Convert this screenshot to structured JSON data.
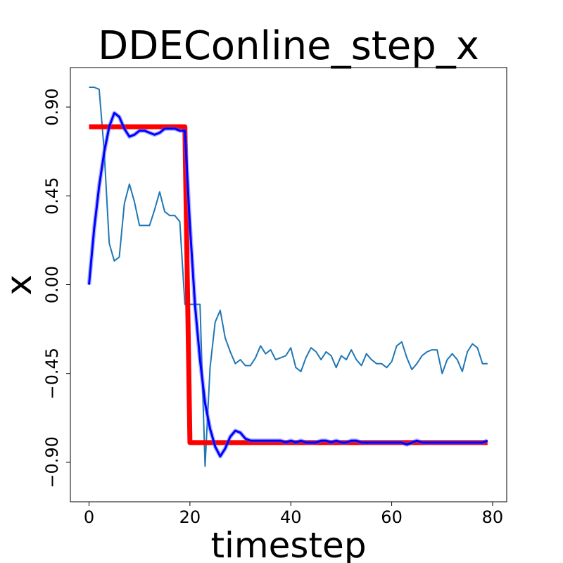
{
  "chart_data": {
    "type": "line",
    "title": "DDEConline_step_x",
    "xlabel": "timestep",
    "ylabel": "x",
    "xlim": [
      -3.7,
      82.8
    ],
    "ylim": [
      -1.1,
      1.1
    ],
    "xticks": [
      0,
      20,
      40,
      60,
      80
    ],
    "xtick_labels": [
      "0",
      "20",
      "40",
      "60",
      "80"
    ],
    "yticks": [
      0.9,
      0.45,
      0.0,
      -0.45,
      -0.9
    ],
    "ytick_labels": [
      "0.90",
      "0.45",
      "0.00",
      "−0.45",
      "−0.90"
    ],
    "grid": false,
    "legend": "none",
    "colors": {
      "target": "#ff0000",
      "estimate": "#0000ff",
      "band": "#4a5cff",
      "noisy": "#1f77b4"
    },
    "series": [
      {
        "role": "target",
        "x": [
          0,
          19,
          20,
          79
        ],
        "y": [
          0.8,
          0.8,
          -0.8,
          -0.8
        ]
      },
      {
        "role": "estimate",
        "x": [
          0,
          1,
          2,
          3,
          4,
          5,
          6,
          7,
          8,
          9,
          10,
          11,
          12,
          13,
          14,
          15,
          16,
          17,
          18,
          19,
          20,
          21,
          22,
          23,
          24,
          25,
          26,
          27,
          28,
          29,
          30,
          31,
          32,
          33,
          34,
          35,
          36,
          37,
          38,
          39,
          40,
          41,
          42,
          43,
          44,
          45,
          46,
          47,
          48,
          49,
          50,
          51,
          52,
          53,
          54,
          55,
          56,
          57,
          58,
          59,
          60,
          61,
          62,
          63,
          64,
          65,
          66,
          67,
          68,
          69,
          70,
          71,
          72,
          73,
          74,
          75,
          76,
          77,
          78,
          79
        ],
        "y": [
          0.0,
          0.28,
          0.5,
          0.67,
          0.8,
          0.87,
          0.85,
          0.79,
          0.75,
          0.76,
          0.78,
          0.78,
          0.77,
          0.76,
          0.77,
          0.79,
          0.79,
          0.79,
          0.78,
          0.78,
          0.3,
          -0.1,
          -0.38,
          -0.6,
          -0.73,
          -0.82,
          -0.87,
          -0.83,
          -0.77,
          -0.74,
          -0.75,
          -0.78,
          -0.79,
          -0.79,
          -0.79,
          -0.79,
          -0.79,
          -0.79,
          -0.79,
          -0.8,
          -0.79,
          -0.8,
          -0.79,
          -0.8,
          -0.8,
          -0.8,
          -0.79,
          -0.79,
          -0.8,
          -0.79,
          -0.8,
          -0.8,
          -0.79,
          -0.79,
          -0.8,
          -0.8,
          -0.8,
          -0.8,
          -0.8,
          -0.8,
          -0.8,
          -0.8,
          -0.8,
          -0.81,
          -0.8,
          -0.79,
          -0.8,
          -0.8,
          -0.8,
          -0.8,
          -0.8,
          -0.8,
          -0.8,
          -0.8,
          -0.8,
          -0.8,
          -0.8,
          -0.8,
          -0.8,
          -0.79
        ]
      },
      {
        "role": "noisy",
        "x": [
          0,
          1,
          2,
          3,
          4,
          5,
          6,
          7,
          8,
          9,
          10,
          11,
          12,
          13,
          14,
          15,
          16,
          17,
          18,
          19,
          20,
          21,
          22,
          23,
          24,
          25,
          26,
          27,
          28,
          29,
          30,
          31,
          32,
          33,
          34,
          35,
          36,
          37,
          38,
          39,
          40,
          41,
          42,
          43,
          44,
          45,
          46,
          47,
          48,
          49,
          50,
          51,
          52,
          53,
          54,
          55,
          56,
          57,
          58,
          59,
          60,
          61,
          62,
          63,
          64,
          65,
          66,
          67,
          68,
          69,
          70,
          71,
          72,
          73,
          74,
          75,
          76,
          77,
          78,
          79
        ],
        "y": [
          1.0,
          1.0,
          0.99,
          0.68,
          0.21,
          0.12,
          0.14,
          0.41,
          0.51,
          0.42,
          0.3,
          0.3,
          0.3,
          0.38,
          0.47,
          0.37,
          0.35,
          0.35,
          0.32,
          -0.1,
          -0.1,
          -0.1,
          -0.1,
          -0.92,
          -0.42,
          -0.19,
          -0.13,
          -0.27,
          -0.34,
          -0.4,
          -0.38,
          -0.41,
          -0.41,
          -0.37,
          -0.31,
          -0.35,
          -0.33,
          -0.38,
          -0.37,
          -0.36,
          -0.32,
          -0.42,
          -0.44,
          -0.37,
          -0.32,
          -0.34,
          -0.38,
          -0.34,
          -0.36,
          -0.42,
          -0.36,
          -0.38,
          -0.33,
          -0.38,
          -0.41,
          -0.35,
          -0.38,
          -0.4,
          -0.4,
          -0.42,
          -0.39,
          -0.31,
          -0.29,
          -0.37,
          -0.43,
          -0.4,
          -0.36,
          -0.34,
          -0.33,
          -0.33,
          -0.45,
          -0.38,
          -0.35,
          -0.38,
          -0.44,
          -0.34,
          -0.3,
          -0.32,
          -0.4,
          -0.4
        ]
      }
    ]
  }
}
